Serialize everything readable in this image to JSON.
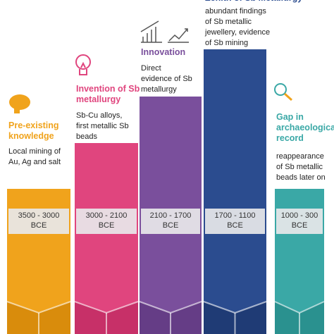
{
  "stages": [
    {
      "title": [
        "Pre-existing",
        "knowledge"
      ],
      "description": [
        "Local mining of",
        "Au, Ag and salt"
      ],
      "period": [
        "3500 - 3000",
        "BCE"
      ],
      "color": "#f0a31c",
      "dark": "#d98c0c"
    },
    {
      "title": [
        "Invention of Sb",
        "metallurgy"
      ],
      "description": [
        "Sb-Cu alloys,",
        "first metallic Sb",
        "beads"
      ],
      "period": [
        "3000 - 2100",
        "BCE"
      ],
      "color": "#e0457e",
      "dark": "#c73068"
    },
    {
      "title": [
        "Innovation"
      ],
      "description": [
        "Direct",
        "evidence of Sb",
        "metallurgy"
      ],
      "period": [
        "2100 - 1700",
        "BCE"
      ],
      "color": "#7a4f9c",
      "dark": "#653d86"
    },
    {
      "title": [
        "Zenith of Sb Metallurgy"
      ],
      "description": [
        "abundant findings",
        "of Sb metallic",
        "jewellery, evidence",
        "of Sb mining"
      ],
      "period": [
        "1700 - 1100",
        "BCE"
      ],
      "color": "#2b4c8f",
      "dark": "#1f3b75"
    },
    {
      "title": [
        "Gap in",
        "archaeological",
        "record"
      ],
      "description": [
        "reappearance",
        "of Sb metallic",
        "beads later on"
      ],
      "period": [
        "1000 - 300",
        "BCE"
      ],
      "color": "#3aa8a6",
      "dark": "#2a918f"
    }
  ]
}
